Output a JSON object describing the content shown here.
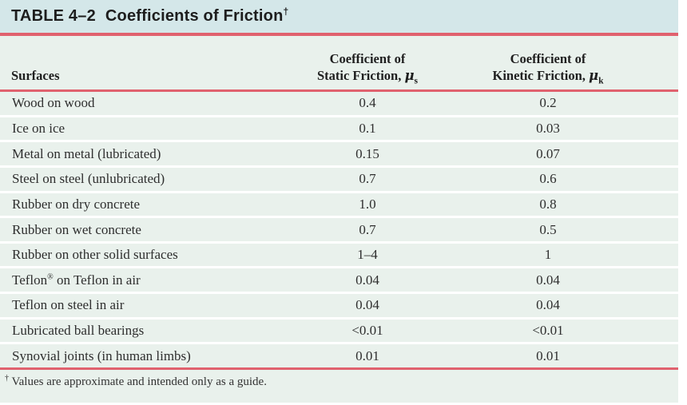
{
  "colors": {
    "title_bg": "#d4e7e9",
    "body_bg": "#e9f1ec",
    "rule_red": "#e0616e"
  },
  "table": {
    "title_label": "TABLE 4–2",
    "title_text": "Coefficients of Friction",
    "title_dagger": "†",
    "columns": {
      "surfaces": "Surfaces",
      "static_line1": "Coefficient of",
      "static_line2": "Static Friction, ",
      "static_symbol": "μ",
      "static_sub": "s",
      "kinetic_line1": "Coefficient of",
      "kinetic_line2": "Kinetic Friction, ",
      "kinetic_symbol": "μ",
      "kinetic_sub": "k"
    },
    "rows": [
      {
        "name_pre": "Wood on wood",
        "name_sup": "",
        "name_post": "",
        "static": "0.4",
        "kinetic": "0.2"
      },
      {
        "name_pre": "Ice on ice",
        "name_sup": "",
        "name_post": "",
        "static": "0.1",
        "kinetic": "0.03"
      },
      {
        "name_pre": "Metal on metal (lubricated)",
        "name_sup": "",
        "name_post": "",
        "static": "0.15",
        "kinetic": "0.07"
      },
      {
        "name_pre": "Steel on steel (unlubricated)",
        "name_sup": "",
        "name_post": "",
        "static": "0.7",
        "kinetic": "0.6"
      },
      {
        "name_pre": "Rubber on dry concrete",
        "name_sup": "",
        "name_post": "",
        "static": "1.0",
        "kinetic": "0.8"
      },
      {
        "name_pre": "Rubber on wet concrete",
        "name_sup": "",
        "name_post": "",
        "static": "0.7",
        "kinetic": "0.5"
      },
      {
        "name_pre": "Rubber on other solid surfaces",
        "name_sup": "",
        "name_post": "",
        "static": "1–4",
        "kinetic": "1"
      },
      {
        "name_pre": "Teflon",
        "name_sup": "®",
        "name_post": " on Teflon in air",
        "static": "0.04",
        "kinetic": "0.04"
      },
      {
        "name_pre": "Teflon on steel in air",
        "name_sup": "",
        "name_post": "",
        "static": "0.04",
        "kinetic": "0.04"
      },
      {
        "name_pre": "Lubricated ball bearings",
        "name_sup": "",
        "name_post": "",
        "static": "<0.01",
        "kinetic": "<0.01"
      },
      {
        "name_pre": "Synovial joints (in human limbs)",
        "name_sup": "",
        "name_post": "",
        "static": "0.01",
        "kinetic": "0.01"
      }
    ],
    "footnote_dagger": "†",
    "footnote_text": " Values are approximate and intended only as a guide."
  },
  "chart_data": {
    "type": "table",
    "title": "TABLE 4–2 Coefficients of Friction†",
    "columns": [
      "Surfaces",
      "Coefficient of Static Friction, μs",
      "Coefficient of Kinetic Friction, μk"
    ],
    "rows": [
      [
        "Wood on wood",
        "0.4",
        "0.2"
      ],
      [
        "Ice on ice",
        "0.1",
        "0.03"
      ],
      [
        "Metal on metal (lubricated)",
        "0.15",
        "0.07"
      ],
      [
        "Steel on steel (unlubricated)",
        "0.7",
        "0.6"
      ],
      [
        "Rubber on dry concrete",
        "1.0",
        "0.8"
      ],
      [
        "Rubber on wet concrete",
        "0.7",
        "0.5"
      ],
      [
        "Rubber on other solid surfaces",
        "1–4",
        "1"
      ],
      [
        "Teflon® on Teflon in air",
        "0.04",
        "0.04"
      ],
      [
        "Teflon on steel in air",
        "0.04",
        "0.04"
      ],
      [
        "Lubricated ball bearings",
        "<0.01",
        "<0.01"
      ],
      [
        "Synovial joints (in human limbs)",
        "0.01",
        "0.01"
      ]
    ],
    "footnote": "† Values are approximate and intended only as a guide."
  }
}
